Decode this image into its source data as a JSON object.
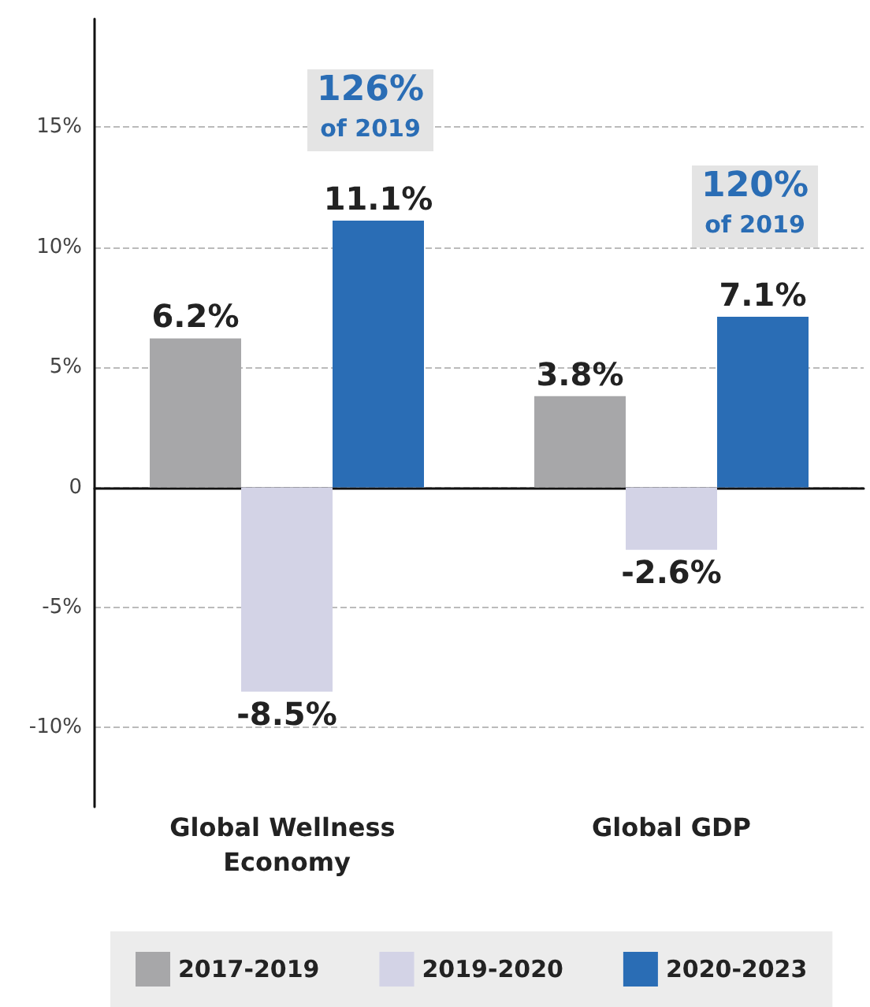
{
  "chart_data": {
    "type": "bar",
    "categories": [
      "Global Wellness Economy",
      "Global GDP"
    ],
    "series": [
      {
        "name": "2017-2019",
        "color": "#a7a7a9",
        "values": [
          6.2,
          3.8
        ],
        "value_labels": [
          "6.2%",
          "3.8%"
        ]
      },
      {
        "name": "2019-2020",
        "color": "#d3d3e6",
        "values": [
          -8.5,
          -2.6
        ],
        "value_labels": [
          "-8.5%",
          "-2.6%"
        ]
      },
      {
        "name": "2020-2023",
        "color": "#2a6db5",
        "values": [
          11.1,
          7.1
        ],
        "value_labels": [
          "11.1%",
          "7.1%"
        ]
      }
    ],
    "ylim": [
      -13.3,
      19.5
    ],
    "yticks": [
      {
        "value": -10,
        "label": "-10%"
      },
      {
        "value": -5,
        "label": "-5%"
      },
      {
        "value": 0,
        "label": "0"
      },
      {
        "value": 5,
        "label": "5%"
      },
      {
        "value": 10,
        "label": "10%"
      },
      {
        "value": 15,
        "label": "15%"
      }
    ],
    "grid": "y",
    "legend": "bottom",
    "annotations": [
      "126%\nof 2019",
      "120%\nof 2019"
    ]
  }
}
